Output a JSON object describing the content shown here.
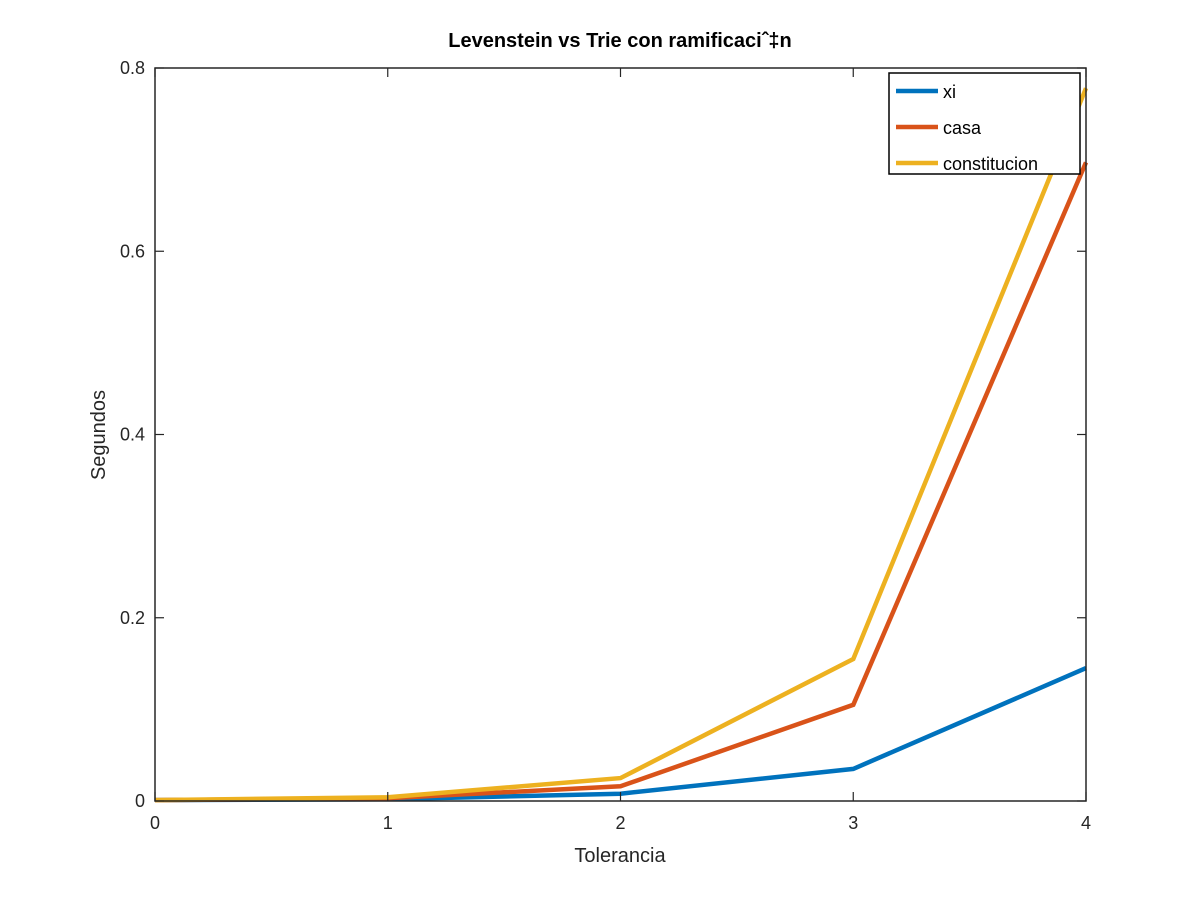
{
  "chart_data": {
    "type": "line",
    "title": "Levenstein vs Trie con ramificaciˆ‡n",
    "xlabel": "Tolerancia",
    "ylabel": "Segundos",
    "x": [
      0,
      1,
      2,
      3,
      4
    ],
    "xlim": [
      0,
      4
    ],
    "ylim": [
      0,
      0.8
    ],
    "xticks": [
      0,
      1,
      2,
      3,
      4
    ],
    "yticks": [
      0,
      0.2,
      0.4,
      0.6,
      0.8
    ],
    "xtick_labels": [
      "0",
      "1",
      "2",
      "3",
      "4"
    ],
    "ytick_labels": [
      "0",
      "0.2",
      "0.4",
      "0.6",
      "0.8"
    ],
    "grid": false,
    "legend_position": "top-right",
    "series": [
      {
        "name": "xi",
        "color": "#0072BD",
        "values": [
          0.001,
          0.002,
          0.008,
          0.035,
          0.145
        ]
      },
      {
        "name": "casa",
        "color": "#D95319",
        "values": [
          0.001,
          0.003,
          0.016,
          0.105,
          0.697
        ]
      },
      {
        "name": "constitucion",
        "color": "#EDB120",
        "values": [
          0.001,
          0.004,
          0.025,
          0.155,
          0.778
        ]
      }
    ]
  }
}
